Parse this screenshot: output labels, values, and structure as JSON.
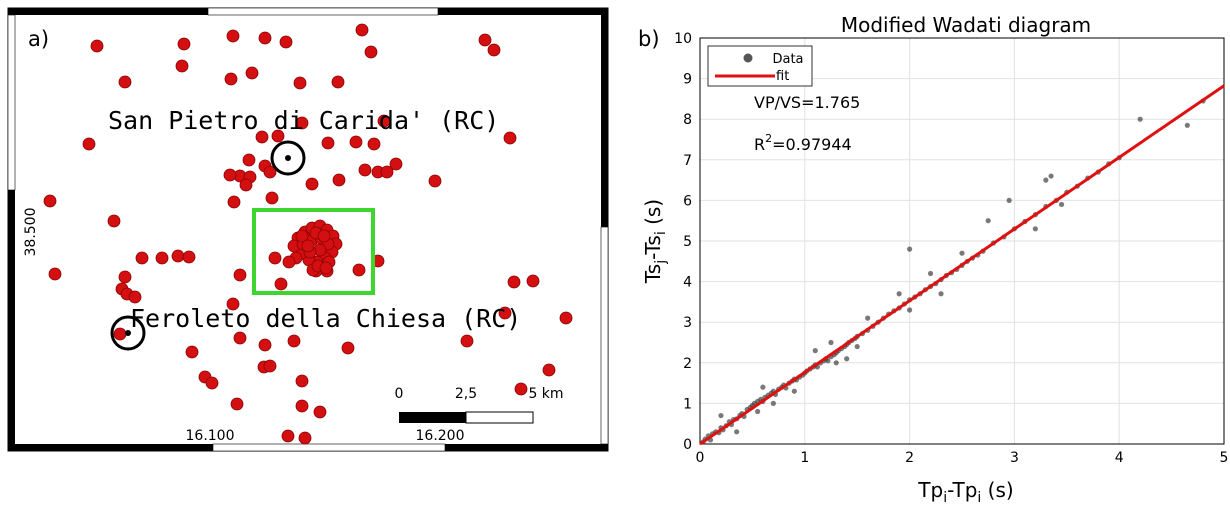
{
  "map_panel": {
    "panel_label": "a)",
    "town_labels": [
      "San Pietro di Carida' (RC)",
      "Feroleto della Chiesa (RC)"
    ],
    "lat_tick": "38.500",
    "lon_ticks": [
      "16.100",
      "16.200"
    ],
    "scalebar": {
      "labels": [
        "0",
        "2,5",
        "5 km"
      ]
    },
    "colors": {
      "event": "#d40f12",
      "cluster_box": "#3fd52f",
      "station_ring": "#000000"
    }
  },
  "chart_data": {
    "type": "scatter",
    "panel_label": "b)",
    "title": "Modified Wadati diagram",
    "xlabel": "Tp_i-Tp_i (s)",
    "ylabel": "Ts_j-Ts_i (s)",
    "xlim": [
      0,
      5
    ],
    "ylim": [
      0,
      10
    ],
    "xticks": [
      "0",
      "1",
      "2",
      "3",
      "4",
      "5"
    ],
    "yticks": [
      "0",
      "1",
      "2",
      "3",
      "4",
      "5",
      "6",
      "7",
      "8",
      "9",
      "10"
    ],
    "grid": true,
    "legend": {
      "placement": "top-left",
      "entries": [
        "Data",
        "fit"
      ]
    },
    "annotations": [
      "VP/VS=1.765",
      "R",
      "=0.97944"
    ],
    "annotation_superscript": "2",
    "fit": {
      "slope": 1.765,
      "intercept": 0.0,
      "x_range": [
        0,
        5
      ],
      "color": "#e01010"
    },
    "series": [
      {
        "name": "Data",
        "color": "#404040",
        "points": [
          [
            0.03,
            0.05
          ],
          [
            0.05,
            0.12
          ],
          [
            0.08,
            0.2
          ],
          [
            0.1,
            0.1
          ],
          [
            0.12,
            0.25
          ],
          [
            0.15,
            0.3
          ],
          [
            0.18,
            0.28
          ],
          [
            0.2,
            0.4
          ],
          [
            0.22,
            0.35
          ],
          [
            0.25,
            0.45
          ],
          [
            0.28,
            0.55
          ],
          [
            0.3,
            0.48
          ],
          [
            0.32,
            0.6
          ],
          [
            0.35,
            0.62
          ],
          [
            0.38,
            0.7
          ],
          [
            0.4,
            0.75
          ],
          [
            0.42,
            0.68
          ],
          [
            0.45,
            0.85
          ],
          [
            0.48,
            0.9
          ],
          [
            0.5,
            0.95
          ],
          [
            0.52,
            1.0
          ],
          [
            0.55,
            1.05
          ],
          [
            0.58,
            1.1
          ],
          [
            0.6,
            1.05
          ],
          [
            0.62,
            1.15
          ],
          [
            0.65,
            1.2
          ],
          [
            0.68,
            1.25
          ],
          [
            0.7,
            1.3
          ],
          [
            0.72,
            1.22
          ],
          [
            0.75,
            1.35
          ],
          [
            0.78,
            1.4
          ],
          [
            0.8,
            1.45
          ],
          [
            0.82,
            1.38
          ],
          [
            0.85,
            1.5
          ],
          [
            0.88,
            1.55
          ],
          [
            0.9,
            1.6
          ],
          [
            0.92,
            1.58
          ],
          [
            0.95,
            1.65
          ],
          [
            0.98,
            1.7
          ],
          [
            1.0,
            1.75
          ],
          [
            1.02,
            1.8
          ],
          [
            1.05,
            1.85
          ],
          [
            1.08,
            1.9
          ],
          [
            1.1,
            1.95
          ],
          [
            1.12,
            1.9
          ],
          [
            1.15,
            2.0
          ],
          [
            1.18,
            2.05
          ],
          [
            1.2,
            2.1
          ],
          [
            1.22,
            2.05
          ],
          [
            1.25,
            2.15
          ],
          [
            1.28,
            2.2
          ],
          [
            1.3,
            2.25
          ],
          [
            1.32,
            2.3
          ],
          [
            1.35,
            2.35
          ],
          [
            1.38,
            2.4
          ],
          [
            1.4,
            2.45
          ],
          [
            1.42,
            2.5
          ],
          [
            1.45,
            2.55
          ],
          [
            1.48,
            2.6
          ],
          [
            1.5,
            2.65
          ],
          [
            1.55,
            2.72
          ],
          [
            1.6,
            2.8
          ],
          [
            1.65,
            2.9
          ],
          [
            1.7,
            3.0
          ],
          [
            1.75,
            3.1
          ],
          [
            1.8,
            3.2
          ],
          [
            1.85,
            3.28
          ],
          [
            1.9,
            3.35
          ],
          [
            1.95,
            3.45
          ],
          [
            2.0,
            3.55
          ],
          [
            2.05,
            3.62
          ],
          [
            2.1,
            3.7
          ],
          [
            2.15,
            3.8
          ],
          [
            2.2,
            3.88
          ],
          [
            2.25,
            3.95
          ],
          [
            2.3,
            4.05
          ],
          [
            2.35,
            4.15
          ],
          [
            2.4,
            4.22
          ],
          [
            2.45,
            4.3
          ],
          [
            2.5,
            4.4
          ],
          [
            2.55,
            4.5
          ],
          [
            2.6,
            4.58
          ],
          [
            2.65,
            4.65
          ],
          [
            2.7,
            4.75
          ],
          [
            2.8,
            4.95
          ],
          [
            2.9,
            5.1
          ],
          [
            3.0,
            5.3
          ],
          [
            3.1,
            5.48
          ],
          [
            3.2,
            5.65
          ],
          [
            3.3,
            5.85
          ],
          [
            3.4,
            6.0
          ],
          [
            3.5,
            6.2
          ],
          [
            3.6,
            6.35
          ],
          [
            3.7,
            6.55
          ],
          [
            3.8,
            6.7
          ],
          [
            3.9,
            6.9
          ],
          [
            4.0,
            7.05
          ],
          [
            4.2,
            8.0
          ],
          [
            4.65,
            7.85
          ],
          [
            4.8,
            8.45
          ],
          [
            0.6,
            1.4
          ],
          [
            0.7,
            1.0
          ],
          [
            0.9,
            1.3
          ],
          [
            1.1,
            2.3
          ],
          [
            1.3,
            2.0
          ],
          [
            1.5,
            2.4
          ],
          [
            1.6,
            3.1
          ],
          [
            1.9,
            3.7
          ],
          [
            2.0,
            3.3
          ],
          [
            2.2,
            4.2
          ],
          [
            2.3,
            3.7
          ],
          [
            2.5,
            4.7
          ],
          [
            3.3,
            6.5
          ],
          [
            3.35,
            6.6
          ],
          [
            2.95,
            6.0
          ],
          [
            2.75,
            5.5
          ],
          [
            0.2,
            0.7
          ],
          [
            0.35,
            0.3
          ],
          [
            1.25,
            2.5
          ],
          [
            1.4,
            2.1
          ],
          [
            2.0,
            4.8
          ],
          [
            3.45,
            5.9
          ],
          [
            3.2,
            5.3
          ],
          [
            0.55,
            0.8
          ]
        ]
      }
    ]
  }
}
